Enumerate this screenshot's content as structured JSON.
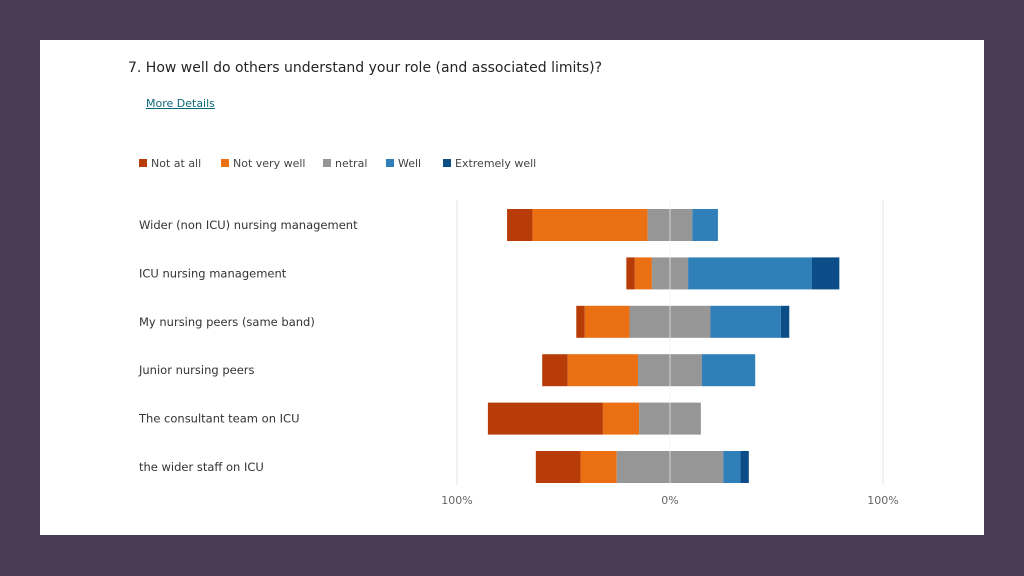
{
  "question": {
    "title": "7.  How well do others understand your role (and associated limits)?",
    "link_label": "More Details"
  },
  "colors": {
    "background": "#4a3b55",
    "card": "#ffffff",
    "link": "#0b6a78",
    "series": [
      "#b83c08",
      "#eb7014",
      "#969696",
      "#2f7fb9",
      "#0b4d86"
    ]
  },
  "chart_data": {
    "type": "bar",
    "orientation": "horizontal",
    "stacking": "diverging",
    "series_names": [
      "Not at all",
      "Not very well",
      "netral",
      "Well",
      "Extremely well"
    ],
    "categories": [
      "Wider (non ICU) nursing management",
      "ICU nursing management",
      "My nursing peers (same band)",
      "Junior nursing peers",
      "The consultant team on ICU",
      "the wider staff on ICU"
    ],
    "values": [
      [
        12,
        54,
        21,
        12,
        0
      ],
      [
        4,
        8,
        17,
        58,
        13
      ],
      [
        4,
        21,
        38,
        33,
        4
      ],
      [
        12,
        33,
        30,
        25,
        0
      ],
      [
        54,
        17,
        29,
        0,
        0
      ],
      [
        21,
        17,
        50,
        8,
        4
      ]
    ],
    "xlim": [
      -100,
      100
    ],
    "ticks": [
      {
        "value": -100,
        "label": "100%"
      },
      {
        "value": 0,
        "label": "0%"
      },
      {
        "value": 100,
        "label": "100%"
      }
    ],
    "legend_position": "top-left"
  }
}
